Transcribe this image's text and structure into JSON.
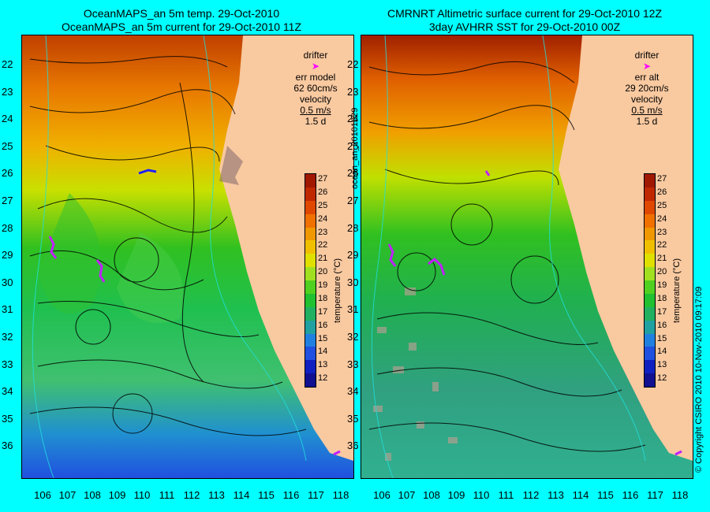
{
  "left_panel": {
    "title_line1": "OceanMAPS_an 5m temp. 29-Oct-2010",
    "title_line2": "OceanMAPS_an 5m current for 29-Oct-2010 11Z",
    "legend_drifter": "drifter",
    "legend_err_label": "err model",
    "legend_err_value": "62 60cm/s",
    "legend_velocity": "velocity",
    "legend_speed": "0.5 m/s",
    "legend_time": "1.5 d"
  },
  "right_panel": {
    "title_line1": "CMRNRT Altimetric surface current for 29-Oct-2010 12Z",
    "title_line2": "3day AVHRR SST for 29-Oct-2010 00Z",
    "legend_drifter": "drifter",
    "legend_err_label": "err alt",
    "legend_err_value": "29 20cm/s",
    "legend_velocity": "velocity",
    "legend_speed": "0.5 m/s",
    "legend_time": "1.5 d"
  },
  "latitudes": [
    "22",
    "23",
    "24",
    "25",
    "26",
    "27",
    "28",
    "29",
    "30",
    "31",
    "32",
    "33",
    "34",
    "35",
    "36"
  ],
  "longitudes": [
    "106",
    "107",
    "108",
    "109",
    "110",
    "111",
    "112",
    "113",
    "114",
    "115",
    "116",
    "117",
    "118"
  ],
  "colorbar": {
    "title": "temperature (°C)",
    "ticks": [
      "27",
      "26",
      "25",
      "24",
      "23",
      "22",
      "21",
      "20",
      "19",
      "18",
      "17",
      "16",
      "15",
      "14",
      "13",
      "12"
    ],
    "colors": [
      "#a01800",
      "#c02800",
      "#e04800",
      "#f07000",
      "#f09800",
      "#f0c000",
      "#e0e000",
      "#a0e020",
      "#50d020",
      "#20c030",
      "#20b060",
      "#20a0a0",
      "#2080e0",
      "#2050e0",
      "#1020c0",
      "#101090"
    ]
  },
  "vertical_label": "ocean_an_20101029",
  "copyright": "© Copyright CSIRO 2010 10-Nov-2010 09:17:09",
  "colors": {
    "background": "#00ffff",
    "land": "#f9c9a0",
    "drifter": "#ff00ff"
  }
}
